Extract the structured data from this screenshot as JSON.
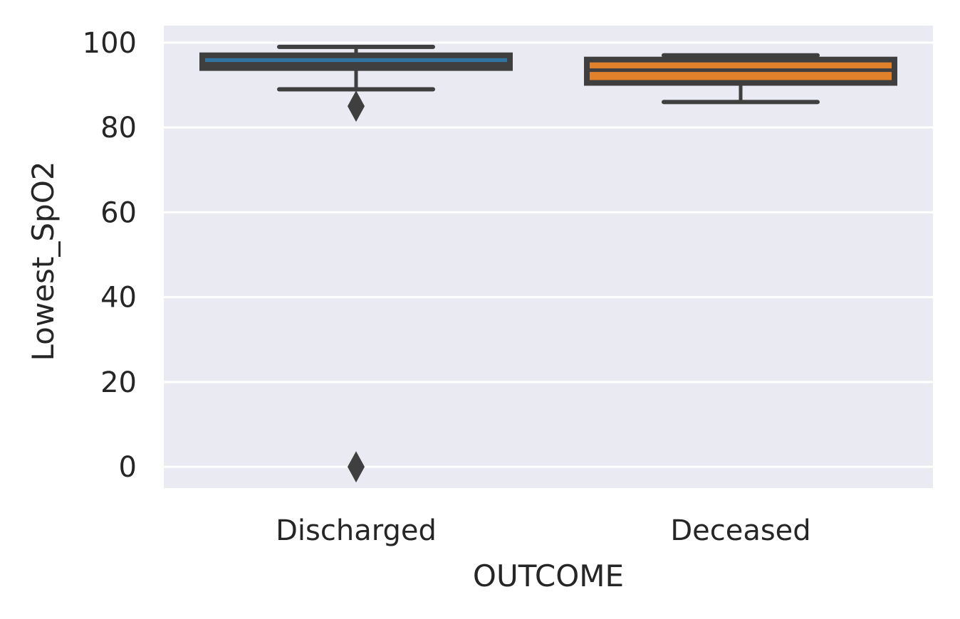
{
  "chart_data": {
    "type": "box",
    "xlabel": "OUTCOME",
    "ylabel": "Lowest_SpO2",
    "ylim": [
      -5,
      104
    ],
    "yticks": [
      0,
      20,
      40,
      60,
      80,
      100
    ],
    "ytick_labels": [
      "0",
      "20",
      "40",
      "60",
      "80",
      "100"
    ],
    "grid": true,
    "categories": [
      "Discharged",
      "Deceased"
    ],
    "boxes": [
      {
        "category": "Discharged",
        "whisker_low": 89,
        "q1": 94,
        "median": 95,
        "q3": 97,
        "whisker_high": 99,
        "outliers": [
          85,
          0
        ],
        "color": "#3274a1"
      },
      {
        "category": "Deceased",
        "whisker_low": 86,
        "q1": 90.5,
        "median": 93.5,
        "q3": 96,
        "whisker_high": 97,
        "outliers": [],
        "color": "#e1812c"
      }
    ],
    "colors": {
      "background": "#eaeaf2",
      "grid": "#ffffff",
      "outline": "#3f3f3f"
    }
  }
}
